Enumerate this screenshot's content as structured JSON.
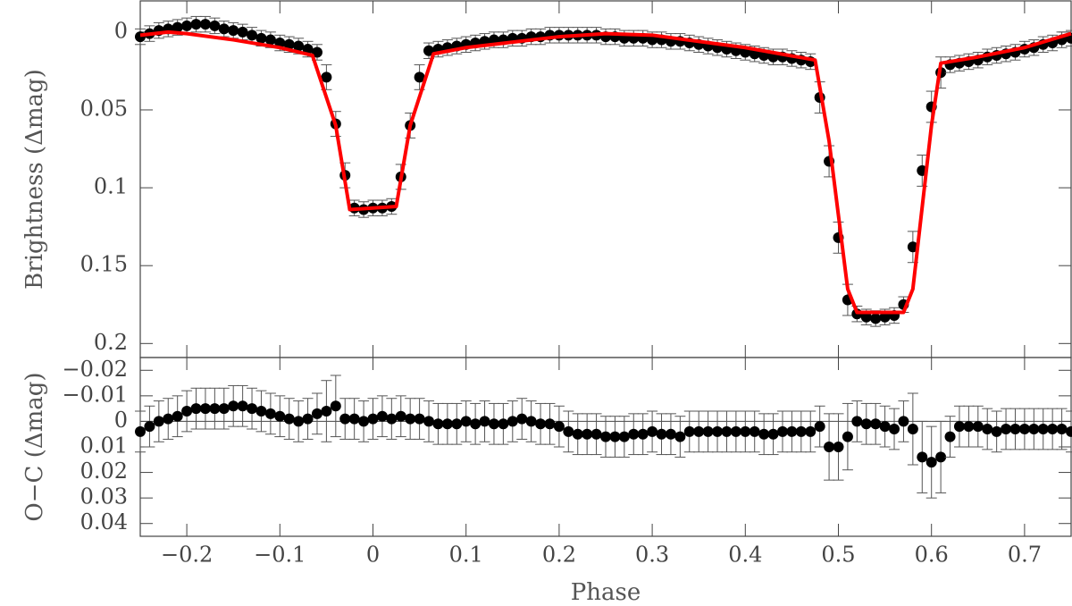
{
  "chart_data": [
    {
      "type": "errorbar",
      "ylabel": "Brightness (Δmag)",
      "xlim": [
        -0.25,
        0.75
      ],
      "xticks": [
        -0.2,
        -0.1,
        0,
        0.1,
        0.2,
        0.3,
        0.4,
        0.5,
        0.6,
        0.7
      ],
      "ylim": [
        -0.02,
        0.209
      ],
      "yticks": [
        0,
        0.05,
        0.1,
        0.15,
        0.2
      ],
      "y_inverted": true,
      "series": [
        {
          "type": "errorbar",
          "color": "#000000",
          "x": [
            -0.25,
            -0.24,
            -0.23,
            -0.22,
            -0.21,
            -0.2,
            -0.19,
            -0.18,
            -0.17,
            -0.16,
            -0.15,
            -0.14,
            -0.13,
            -0.12,
            -0.11,
            -0.1,
            -0.09,
            -0.08,
            -0.07,
            -0.06,
            -0.05,
            -0.04,
            -0.03,
            -0.02,
            -0.01,
            0,
            0.01,
            0.02,
            0.03,
            0.04,
            0.05,
            0.06,
            0.07,
            0.08,
            0.09,
            0.1,
            0.11,
            0.12,
            0.13,
            0.14,
            0.15,
            0.16,
            0.17,
            0.18,
            0.19,
            0.2,
            0.21,
            0.22,
            0.23,
            0.24,
            0.25,
            0.26,
            0.27,
            0.28,
            0.29,
            0.3,
            0.31,
            0.32,
            0.33,
            0.34,
            0.35,
            0.36,
            0.37,
            0.38,
            0.39,
            0.4,
            0.41,
            0.42,
            0.43,
            0.44,
            0.45,
            0.46,
            0.47,
            0.48,
            0.49,
            0.5,
            0.51,
            0.52,
            0.53,
            0.54,
            0.55,
            0.56,
            0.57,
            0.58,
            0.59,
            0.6,
            0.61,
            0.62,
            0.63,
            0.64,
            0.65,
            0.66,
            0.67,
            0.68,
            0.69,
            0.7,
            0.71,
            0.72,
            0.73,
            0.74,
            0.75
          ],
          "values": [
            0.003,
            0.001,
            -0.001,
            -0.002,
            -0.003,
            -0.004,
            -0.005,
            -0.005,
            -0.004,
            -0.002,
            -0.001,
            0,
            0.002,
            0.004,
            0.005,
            0.007,
            0.008,
            0.009,
            0.011,
            0.013,
            0.029,
            0.059,
            0.092,
            0.113,
            0.114,
            0.113,
            0.113,
            0.112,
            0.093,
            0.06,
            0.029,
            0.012,
            0.011,
            0.01,
            0.009,
            0.008,
            0.007,
            0.006,
            0.005,
            0.005,
            0.004,
            0.004,
            0.003,
            0.003,
            0.002,
            0.002,
            0.002,
            0.002,
            0.002,
            0.002,
            0.003,
            0.003,
            0.004,
            0.004,
            0.004,
            0.005,
            0.005,
            0.006,
            0.006,
            0.007,
            0.008,
            0.009,
            0.01,
            0.011,
            0.012,
            0.013,
            0.014,
            0.015,
            0.016,
            0.016,
            0.017,
            0.018,
            0.019,
            0.042,
            0.083,
            0.132,
            0.172,
            0.181,
            0.183,
            0.184,
            0.183,
            0.182,
            0.175,
            0.138,
            0.089,
            0.048,
            0.026,
            0.021,
            0.02,
            0.019,
            0.018,
            0.016,
            0.015,
            0.014,
            0.013,
            0.011,
            0.01,
            0.008,
            0.007,
            0.005,
            0.004
          ],
          "errors": [
            0.005,
            0.005,
            0.005,
            0.005,
            0.005,
            0.005,
            0.005,
            0.005,
            0.005,
            0.005,
            0.005,
            0.005,
            0.005,
            0.005,
            0.005,
            0.005,
            0.005,
            0.005,
            0.005,
            0.005,
            0.008,
            0.008,
            0.008,
            0.005,
            0.005,
            0.005,
            0.005,
            0.005,
            0.008,
            0.008,
            0.008,
            0.005,
            0.005,
            0.005,
            0.005,
            0.005,
            0.005,
            0.005,
            0.005,
            0.005,
            0.005,
            0.005,
            0.005,
            0.005,
            0.005,
            0.005,
            0.005,
            0.005,
            0.005,
            0.005,
            0.005,
            0.005,
            0.005,
            0.005,
            0.005,
            0.005,
            0.005,
            0.005,
            0.005,
            0.005,
            0.005,
            0.005,
            0.005,
            0.005,
            0.005,
            0.005,
            0.005,
            0.005,
            0.005,
            0.005,
            0.005,
            0.005,
            0.005,
            0.01,
            0.01,
            0.01,
            0.01,
            0.005,
            0.005,
            0.005,
            0.005,
            0.005,
            0.005,
            0.01,
            0.01,
            0.01,
            0.01,
            0.005,
            0.005,
            0.005,
            0.005,
            0.005,
            0.005,
            0.005,
            0.005,
            0.005,
            0.005,
            0.005,
            0.005,
            0.005,
            0.005
          ]
        },
        {
          "type": "line",
          "color": "#ff0000",
          "x": [
            -0.25,
            -0.22,
            -0.2,
            -0.15,
            -0.1,
            -0.065,
            -0.04,
            -0.025,
            0.025,
            0.04,
            0.065,
            0.1,
            0.2,
            0.25,
            0.3,
            0.4,
            0.475,
            0.49,
            0.51,
            0.52,
            0.57,
            0.58,
            0.6,
            0.61,
            0.65,
            0.7,
            0.75
          ],
          "values": [
            0.002,
            0,
            0.001,
            0.005,
            0.01,
            0.015,
            0.06,
            0.114,
            0.112,
            0.06,
            0.014,
            0.01,
            0.003,
            0.001,
            0.002,
            0.01,
            0.018,
            0.07,
            0.165,
            0.18,
            0.18,
            0.165,
            0.06,
            0.02,
            0.016,
            0.01,
            0.001
          ]
        }
      ]
    },
    {
      "type": "errorbar",
      "ylabel": "O−C (Δmag)",
      "xlabel": "Phase",
      "xlim": [
        -0.25,
        0.75
      ],
      "xticks": [
        {
          "value": -0.2,
          "label": "−0.2"
        },
        {
          "value": -0.1,
          "label": "−0.1"
        },
        0,
        0.1,
        0.2,
        0.3,
        0.4,
        0.5,
        0.6,
        0.7
      ],
      "ylim": [
        -0.025,
        0.045
      ],
      "yticks": [
        {
          "value": -0.02,
          "label": "−0.02"
        },
        {
          "value": -0.01,
          "label": "−0.01"
        },
        0,
        0.01,
        0.02,
        0.03,
        0.04
      ],
      "y_inverted": true,
      "zero_line": true,
      "series": [
        {
          "type": "errorbar",
          "color": "#000000",
          "x": [
            -0.25,
            -0.24,
            -0.23,
            -0.22,
            -0.21,
            -0.2,
            -0.19,
            -0.18,
            -0.17,
            -0.16,
            -0.15,
            -0.14,
            -0.13,
            -0.12,
            -0.11,
            -0.1,
            -0.09,
            -0.08,
            -0.07,
            -0.06,
            -0.05,
            -0.04,
            -0.03,
            -0.02,
            -0.01,
            0,
            0.01,
            0.02,
            0.03,
            0.04,
            0.05,
            0.06,
            0.07,
            0.08,
            0.09,
            0.1,
            0.11,
            0.12,
            0.13,
            0.14,
            0.15,
            0.16,
            0.17,
            0.18,
            0.19,
            0.2,
            0.21,
            0.22,
            0.23,
            0.24,
            0.25,
            0.26,
            0.27,
            0.28,
            0.29,
            0.3,
            0.31,
            0.32,
            0.33,
            0.34,
            0.35,
            0.36,
            0.37,
            0.38,
            0.39,
            0.4,
            0.41,
            0.42,
            0.43,
            0.44,
            0.45,
            0.46,
            0.47,
            0.48,
            0.49,
            0.5,
            0.51,
            0.52,
            0.53,
            0.54,
            0.55,
            0.56,
            0.57,
            0.58,
            0.59,
            0.6,
            0.61,
            0.62,
            0.63,
            0.64,
            0.65,
            0.66,
            0.67,
            0.68,
            0.69,
            0.7,
            0.71,
            0.72,
            0.73,
            0.74,
            0.75
          ],
          "values": [
            0.004,
            0.002,
            0,
            -0.001,
            -0.002,
            -0.004,
            -0.005,
            -0.005,
            -0.005,
            -0.005,
            -0.006,
            -0.006,
            -0.005,
            -0.004,
            -0.003,
            -0.002,
            -0.001,
            0,
            -0.001,
            -0.003,
            -0.004,
            -0.006,
            -0.001,
            -0.001,
            0,
            -0.001,
            -0.002,
            -0.001,
            -0.002,
            -0.001,
            -0.001,
            0,
            0.001,
            0.001,
            0.001,
            0,
            0.001,
            0,
            0.001,
            0.001,
            0,
            -0.001,
            0,
            0.001,
            0.001,
            0.002,
            0.004,
            0.005,
            0.005,
            0.005,
            0.006,
            0.006,
            0.006,
            0.005,
            0.005,
            0.004,
            0.005,
            0.005,
            0.006,
            0.004,
            0.004,
            0.004,
            0.004,
            0.004,
            0.004,
            0.004,
            0.004,
            0.005,
            0.005,
            0.004,
            0.004,
            0.004,
            0.004,
            0.002,
            0.01,
            0.01,
            0.006,
            0,
            0.001,
            0.001,
            0.002,
            0.003,
            0,
            0.003,
            0.014,
            0.016,
            0.014,
            0.006,
            0.002,
            0.002,
            0.002,
            0.003,
            0.004,
            0.003,
            0.003,
            0.003,
            0.003,
            0.003,
            0.003,
            0.003,
            0.004
          ],
          "errors": [
            0.008,
            0.008,
            0.008,
            0.008,
            0.008,
            0.008,
            0.008,
            0.008,
            0.008,
            0.008,
            0.008,
            0.008,
            0.008,
            0.008,
            0.008,
            0.008,
            0.008,
            0.008,
            0.008,
            0.008,
            0.012,
            0.012,
            0.008,
            0.008,
            0.008,
            0.008,
            0.008,
            0.008,
            0.008,
            0.008,
            0.008,
            0.008,
            0.008,
            0.008,
            0.008,
            0.008,
            0.008,
            0.008,
            0.008,
            0.008,
            0.008,
            0.008,
            0.008,
            0.008,
            0.008,
            0.008,
            0.008,
            0.008,
            0.008,
            0.008,
            0.008,
            0.008,
            0.008,
            0.008,
            0.008,
            0.008,
            0.008,
            0.008,
            0.008,
            0.008,
            0.008,
            0.008,
            0.008,
            0.008,
            0.008,
            0.008,
            0.008,
            0.008,
            0.008,
            0.008,
            0.008,
            0.008,
            0.008,
            0.008,
            0.013,
            0.013,
            0.013,
            0.008,
            0.008,
            0.008,
            0.008,
            0.008,
            0.008,
            0.014,
            0.014,
            0.014,
            0.014,
            0.008,
            0.008,
            0.008,
            0.008,
            0.008,
            0.008,
            0.008,
            0.008,
            0.008,
            0.008,
            0.008,
            0.008,
            0.008,
            0.008
          ]
        }
      ]
    }
  ]
}
